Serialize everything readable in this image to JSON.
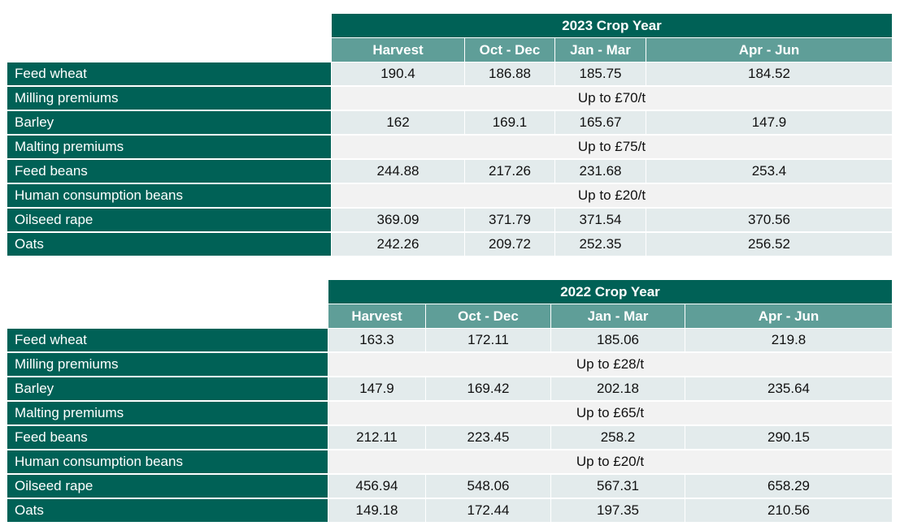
{
  "tables": [
    {
      "year_title": "2023 Crop Year",
      "columns": [
        "Harvest",
        "Oct - Dec",
        "Jan - Mar",
        "Apr - Jun"
      ],
      "rows": [
        {
          "label": "Feed wheat",
          "values": [
            "190.4",
            "186.88",
            "185.75",
            "184.52"
          ]
        },
        {
          "label": "Milling premiums",
          "note": "Up to £70/t"
        },
        {
          "label": "Barley",
          "values": [
            "162",
            "169.1",
            "165.67",
            "147.9"
          ]
        },
        {
          "label": "Malting premiums",
          "note": "Up to £75/t"
        },
        {
          "label": "Feed beans",
          "values": [
            "244.88",
            "217.26",
            "231.68",
            "253.4"
          ]
        },
        {
          "label": "Human consumption beans",
          "note": "Up to £20/t"
        },
        {
          "label": "Oilseed rape",
          "values": [
            "369.09",
            "371.79",
            "371.54",
            "370.56"
          ]
        },
        {
          "label": "Oats",
          "values": [
            "242.26",
            "209.72",
            "252.35",
            "256.52"
          ]
        }
      ]
    },
    {
      "year_title": "2022 Crop Year",
      "columns": [
        "Harvest",
        "Oct - Dec",
        "Jan - Mar",
        "Apr - Jun"
      ],
      "rows": [
        {
          "label": "Feed wheat",
          "values": [
            "163.3",
            "172.11",
            "185.06",
            "219.8"
          ]
        },
        {
          "label": "Milling premiums",
          "note": "Up to £28/t"
        },
        {
          "label": "Barley",
          "values": [
            "147.9",
            "169.42",
            "202.18",
            "235.64"
          ]
        },
        {
          "label": "Malting premiums",
          "note": "Up to £65/t"
        },
        {
          "label": "Feed beans",
          "values": [
            "212.11",
            "223.45",
            "258.2",
            "290.15"
          ]
        },
        {
          "label": "Human consumption beans",
          "note": "Up to £20/t"
        },
        {
          "label": "Oilseed rape",
          "values": [
            "456.94",
            "548.06",
            "567.31",
            "658.29"
          ]
        },
        {
          "label": "Oats",
          "values": [
            "149.18",
            "172.44",
            "197.35",
            "210.56"
          ]
        }
      ]
    }
  ]
}
